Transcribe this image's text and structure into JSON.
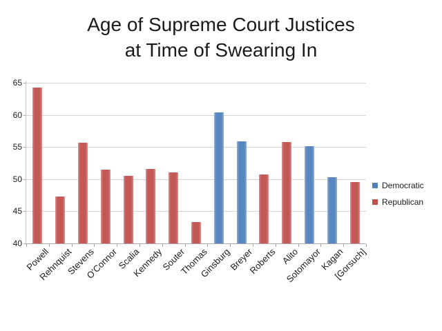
{
  "page": {
    "background": "#ffffff"
  },
  "chart_data": {
    "type": "bar",
    "title": "Age of Supreme Court Justices at Time of Swearing In",
    "title_lines": [
      "Age of Supreme Court Justices",
      "at Time of Swearing In"
    ],
    "categories": [
      "Powell",
      "Rehnquist",
      "Stevens",
      "O'Connor",
      "Scalia",
      "Kennedy",
      "Souter",
      "Thomas",
      "Ginsburg",
      "Breyer",
      "Roberts",
      "Alito",
      "Sotomayor",
      "Kagan",
      "[Gorsuch]"
    ],
    "values": [
      64.3,
      47.3,
      55.7,
      51.5,
      50.5,
      51.6,
      51.1,
      43.3,
      60.4,
      55.9,
      50.7,
      55.8,
      55.1,
      50.3,
      49.6
    ],
    "parties": [
      "Republican",
      "Republican",
      "Republican",
      "Republican",
      "Republican",
      "Republican",
      "Republican",
      "Republican",
      "Democratic",
      "Democratic",
      "Republican",
      "Republican",
      "Democratic",
      "Democratic",
      "Republican"
    ],
    "xlabel": "",
    "ylabel": "",
    "ylim": [
      40,
      65
    ],
    "yticks": [
      40,
      45,
      50,
      55,
      60,
      65
    ],
    "grid": true,
    "legend_position": "right",
    "legend": [
      {
        "label": "Democratic",
        "color": "#4F81BD"
      },
      {
        "label": "Republican",
        "color": "#C0504D"
      }
    ],
    "party_colors": {
      "Democratic": "#4F81BD",
      "Republican": "#C0504D"
    },
    "gridline_color": "#d3d3d3",
    "axis_color": "#a9a9a9",
    "text_color": "#1a1a1a"
  }
}
